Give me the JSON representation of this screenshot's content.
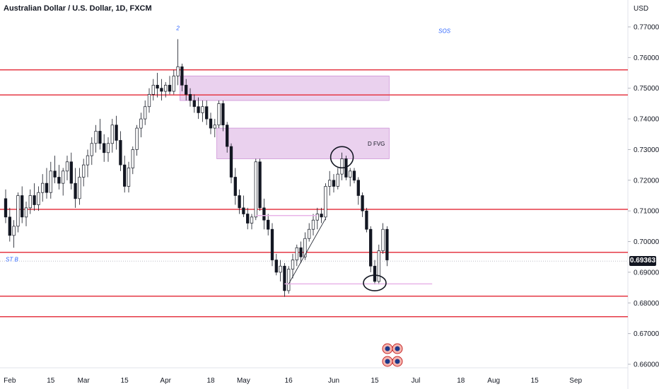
{
  "header": {
    "title": "Australian Dollar / U.S. Dollar, 1D, FXCM"
  },
  "chart_data": {
    "type": "candlestick",
    "currency_label": "USD",
    "current_price": "0.69363",
    "x_ticks": [
      {
        "label": "Feb",
        "index": 1
      },
      {
        "label": "15",
        "index": 11
      },
      {
        "label": "Mar",
        "index": 19
      },
      {
        "label": "15",
        "index": 29
      },
      {
        "label": "Apr",
        "index": 39
      },
      {
        "label": "18",
        "index": 50
      },
      {
        "label": "May",
        "index": 58
      },
      {
        "label": "16",
        "index": 69
      },
      {
        "label": "Jun",
        "index": 80
      },
      {
        "label": "15",
        "index": 90
      },
      {
        "label": "Jul",
        "index": 100
      },
      {
        "label": "18",
        "index": 111
      },
      {
        "label": "Aug",
        "index": 119
      },
      {
        "label": "15",
        "index": 129
      },
      {
        "label": "Sep",
        "index": 139
      }
    ],
    "y_ticks": [
      "0.77000",
      "0.76000",
      "0.75000",
      "0.74000",
      "0.73000",
      "0.72000",
      "0.71000",
      "0.70000",
      "0.69000",
      "0.68000",
      "0.67000",
      "0.66000"
    ],
    "y_range": [
      0.657,
      0.776
    ],
    "horizontal_levels": [
      0.756,
      0.7478,
      0.7105,
      0.6965,
      0.6822,
      0.6755
    ],
    "zones": [
      {
        "from_index": 43,
        "to_index": 93,
        "low": 0.746,
        "high": 0.754
      },
      {
        "from_index": 52,
        "to_index": 93,
        "low": 0.727,
        "high": 0.737,
        "label": "D FVG"
      }
    ],
    "annotations": [
      {
        "text": "2",
        "index": 42,
        "price": 0.769
      },
      {
        "text": "SOS",
        "index": 107,
        "price": 0.768
      },
      {
        "text": "ST B",
        "index": 0,
        "price": 0.6935
      }
    ],
    "candles": [
      [
        0.714,
        0.717,
        0.706,
        0.708
      ],
      [
        0.708,
        0.711,
        0.7,
        0.702
      ],
      [
        0.702,
        0.707,
        0.698,
        0.705
      ],
      [
        0.705,
        0.716,
        0.703,
        0.715
      ],
      [
        0.715,
        0.718,
        0.706,
        0.708
      ],
      [
        0.708,
        0.713,
        0.705,
        0.711
      ],
      [
        0.711,
        0.717,
        0.709,
        0.715
      ],
      [
        0.715,
        0.719,
        0.71,
        0.712
      ],
      [
        0.712,
        0.718,
        0.71,
        0.716
      ],
      [
        0.716,
        0.722,
        0.713,
        0.719
      ],
      [
        0.719,
        0.724,
        0.714,
        0.716
      ],
      [
        0.716,
        0.726,
        0.714,
        0.723
      ],
      [
        0.723,
        0.728,
        0.719,
        0.721
      ],
      [
        0.721,
        0.725,
        0.717,
        0.719
      ],
      [
        0.719,
        0.724,
        0.715,
        0.723
      ],
      [
        0.723,
        0.728,
        0.72,
        0.726
      ],
      [
        0.726,
        0.729,
        0.717,
        0.719
      ],
      [
        0.719,
        0.724,
        0.711,
        0.714
      ],
      [
        0.714,
        0.724,
        0.712,
        0.721
      ],
      [
        0.721,
        0.727,
        0.718,
        0.725
      ],
      [
        0.725,
        0.73,
        0.721,
        0.728
      ],
      [
        0.728,
        0.734,
        0.725,
        0.732
      ],
      [
        0.732,
        0.738,
        0.729,
        0.736
      ],
      [
        0.736,
        0.74,
        0.73,
        0.732
      ],
      [
        0.732,
        0.735,
        0.726,
        0.729
      ],
      [
        0.729,
        0.734,
        0.726,
        0.732
      ],
      [
        0.732,
        0.74,
        0.729,
        0.738
      ],
      [
        0.738,
        0.741,
        0.73,
        0.733
      ],
      [
        0.733,
        0.736,
        0.723,
        0.725
      ],
      [
        0.725,
        0.728,
        0.716,
        0.718
      ],
      [
        0.718,
        0.726,
        0.716,
        0.724
      ],
      [
        0.724,
        0.731,
        0.722,
        0.73
      ],
      [
        0.73,
        0.738,
        0.728,
        0.737
      ],
      [
        0.737,
        0.742,
        0.734,
        0.74
      ],
      [
        0.74,
        0.746,
        0.738,
        0.744
      ],
      [
        0.744,
        0.75,
        0.742,
        0.748
      ],
      [
        0.748,
        0.753,
        0.746,
        0.751
      ],
      [
        0.751,
        0.755,
        0.747,
        0.75
      ],
      [
        0.75,
        0.753,
        0.746,
        0.749
      ],
      [
        0.749,
        0.752,
        0.747,
        0.751
      ],
      [
        0.751,
        0.754,
        0.748,
        0.749
      ],
      [
        0.749,
        0.756,
        0.748,
        0.754
      ],
      [
        0.754,
        0.766,
        0.751,
        0.757
      ],
      [
        0.757,
        0.758,
        0.749,
        0.751
      ],
      [
        0.751,
        0.753,
        0.746,
        0.748
      ],
      [
        0.748,
        0.75,
        0.744,
        0.746
      ],
      [
        0.746,
        0.748,
        0.742,
        0.744
      ],
      [
        0.744,
        0.747,
        0.74,
        0.742
      ],
      [
        0.742,
        0.746,
        0.739,
        0.744
      ],
      [
        0.744,
        0.746,
        0.738,
        0.74
      ],
      [
        0.74,
        0.742,
        0.735,
        0.737
      ],
      [
        0.737,
        0.74,
        0.734,
        0.738
      ],
      [
        0.738,
        0.746,
        0.737,
        0.745
      ],
      [
        0.745,
        0.746,
        0.736,
        0.738
      ],
      [
        0.738,
        0.739,
        0.729,
        0.731
      ],
      [
        0.731,
        0.732,
        0.719,
        0.721
      ],
      [
        0.721,
        0.724,
        0.712,
        0.715
      ],
      [
        0.715,
        0.717,
        0.709,
        0.711
      ],
      [
        0.711,
        0.715,
        0.708,
        0.709
      ],
      [
        0.709,
        0.711,
        0.704,
        0.706
      ],
      [
        0.706,
        0.709,
        0.704,
        0.708
      ],
      [
        0.708,
        0.727,
        0.707,
        0.726
      ],
      [
        0.726,
        0.727,
        0.71,
        0.711
      ],
      [
        0.711,
        0.714,
        0.704,
        0.707
      ],
      [
        0.707,
        0.709,
        0.702,
        0.704
      ],
      [
        0.704,
        0.706,
        0.692,
        0.694
      ],
      [
        0.694,
        0.696,
        0.689,
        0.69
      ],
      [
        0.69,
        0.694,
        0.687,
        0.692
      ],
      [
        0.692,
        0.693,
        0.682,
        0.684
      ],
      [
        0.684,
        0.692,
        0.683,
        0.691
      ],
      [
        0.691,
        0.696,
        0.688,
        0.694
      ],
      [
        0.694,
        0.699,
        0.692,
        0.698
      ],
      [
        0.698,
        0.7,
        0.693,
        0.695
      ],
      [
        0.695,
        0.703,
        0.694,
        0.701
      ],
      [
        0.701,
        0.706,
        0.7,
        0.704
      ],
      [
        0.704,
        0.709,
        0.702,
        0.707
      ],
      [
        0.707,
        0.711,
        0.704,
        0.709
      ],
      [
        0.709,
        0.711,
        0.706,
        0.708
      ],
      [
        0.708,
        0.719,
        0.707,
        0.718
      ],
      [
        0.718,
        0.723,
        0.715,
        0.72
      ],
      [
        0.72,
        0.722,
        0.716,
        0.718
      ],
      [
        0.718,
        0.724,
        0.717,
        0.722
      ],
      [
        0.722,
        0.729,
        0.72,
        0.727
      ],
      [
        0.727,
        0.728,
        0.72,
        0.721
      ],
      [
        0.721,
        0.724,
        0.718,
        0.723
      ],
      [
        0.723,
        0.724,
        0.719,
        0.72
      ],
      [
        0.72,
        0.721,
        0.712,
        0.715
      ],
      [
        0.715,
        0.716,
        0.708,
        0.71
      ],
      [
        0.71,
        0.711,
        0.703,
        0.704
      ],
      [
        0.704,
        0.705,
        0.69,
        0.692
      ],
      [
        0.692,
        0.694,
        0.686,
        0.687
      ],
      [
        0.687,
        0.699,
        0.686,
        0.697
      ],
      [
        0.697,
        0.706,
        0.696,
        0.704
      ],
      [
        0.704,
        0.705,
        0.692,
        0.694
      ]
    ]
  }
}
